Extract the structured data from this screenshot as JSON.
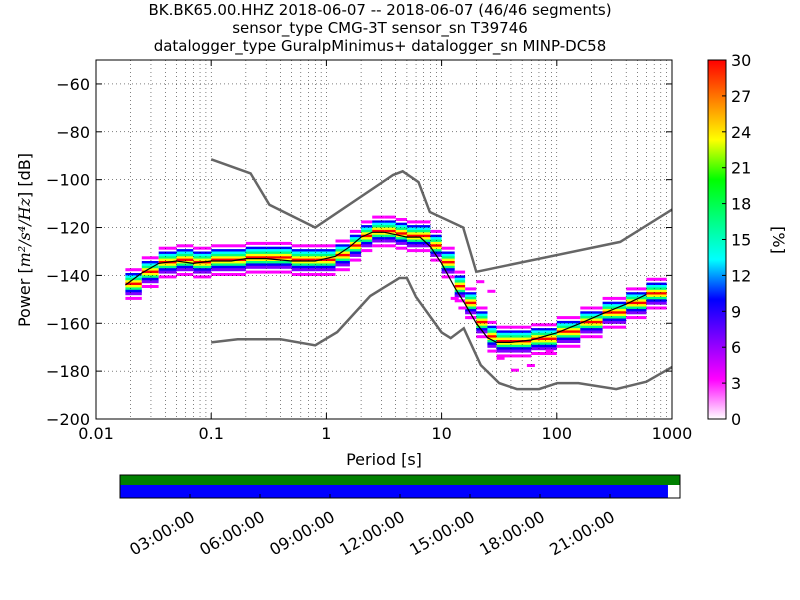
{
  "chart_data": {
    "type": "heatmap",
    "title_lines": [
      "BK.BK65.00.HHZ   2018-06-07 -- 2018-06-07  (46/46 segments)",
      "sensor_type CMG-3T sensor_sn T39746",
      "datalogger_type GuralpMinimus+ datalogger_sn MINP-DC58"
    ],
    "xlabel": "Period [s]",
    "ylabel_main": "Power [",
    "ylabel_math": "m²/s⁴/Hz",
    "ylabel_end": "] [dB]",
    "xscale": "log",
    "xlim": [
      0.01,
      1000
    ],
    "ylim": [
      -200,
      -50
    ],
    "xticks": [
      "0.01",
      "0.1",
      "1",
      "10",
      "100",
      "1000"
    ],
    "yticks": [
      "−60",
      "−80",
      "−100",
      "−120",
      "−140",
      "−160",
      "−180",
      "−200"
    ],
    "ytick_values": [
      -60,
      -80,
      -100,
      -120,
      -140,
      -160,
      -180,
      -200
    ],
    "grid": true,
    "colorbar": {
      "label": "[%]",
      "range": [
        0,
        30
      ],
      "ticks": [
        "0",
        "3",
        "6",
        "9",
        "12",
        "15",
        "18",
        "21",
        "24",
        "27",
        "30"
      ],
      "colors": [
        "#ffffff",
        "#ff00ff",
        "#8000ff",
        "#0000ff",
        "#00ffff",
        "#00ff80",
        "#00ff00",
        "#ffff00",
        "#ff8000",
        "#ff0000"
      ]
    },
    "nhnm": {
      "name": "NHNM",
      "x": [
        0.1,
        0.22,
        0.32,
        0.8,
        3.8,
        4.6,
        6.3,
        7.9,
        15.4,
        20,
        354.8,
        1000
      ],
      "y": [
        -91.5,
        -97.4,
        -110.5,
        -120,
        -98,
        -96.5,
        -101,
        -113.5,
        -120,
        -138.5,
        -126,
        -112.5
      ]
    },
    "nlnm": {
      "name": "NLNM",
      "x": [
        0.1,
        0.17,
        0.4,
        0.8,
        1.24,
        2.4,
        4.3,
        5,
        6,
        10,
        12,
        15.6,
        21.9,
        31.6,
        45,
        70,
        101,
        154,
        328,
        600,
        1000
      ],
      "y": [
        -168,
        -166.7,
        -166.7,
        -169.2,
        -163.7,
        -148.6,
        -141.1,
        -141.1,
        -149,
        -163.8,
        -166.2,
        -162.1,
        -177.5,
        -185,
        -187.5,
        -187.5,
        -185,
        -185,
        -187.5,
        -184.4,
        -178.3
      ]
    },
    "mode": {
      "name": "mode",
      "x": [
        0.018,
        0.025,
        0.035,
        0.05,
        0.07,
        0.1,
        0.15,
        0.2,
        0.3,
        0.5,
        0.8,
        1.2,
        1.6,
        2,
        2.5,
        3.2,
        4,
        5,
        6.5,
        8,
        10,
        13,
        16,
        20,
        25,
        30,
        40,
        60,
        100,
        160,
        250,
        400,
        600
      ],
      "y": [
        -144,
        -139,
        -135,
        -134,
        -135,
        -134,
        -134,
        -133,
        -133,
        -134,
        -134,
        -132,
        -128,
        -124,
        -122,
        -122,
        -123,
        -124,
        -124,
        -128,
        -135,
        -145,
        -152,
        -160,
        -166,
        -168,
        -168,
        -167,
        -164,
        -160,
        -156,
        -152,
        -148
      ]
    },
    "density_stack": {
      "x": [
        0.018,
        0.025,
        0.035,
        0.05,
        0.07,
        0.1,
        0.15,
        0.2,
        0.3,
        0.5,
        0.8,
        1.2,
        1.6,
        2,
        2.5,
        3.2,
        4,
        5,
        6.5,
        8,
        10,
        13,
        16,
        20,
        25,
        30,
        40,
        60,
        100,
        160,
        250,
        400,
        600
      ],
      "offsets": [
        6,
        4,
        3,
        2,
        1,
        0,
        -1,
        -2,
        -3,
        -4,
        -6
      ],
      "levels": [
        3,
        9,
        13,
        18,
        24,
        30,
        22,
        16,
        11,
        6,
        2
      ]
    },
    "outliers": {
      "x": [
        12,
        14,
        17,
        20,
        25,
        30,
        40,
        55,
        80
      ],
      "y": [
        -150,
        -154,
        -158,
        -143,
        -147,
        -175,
        -180,
        -178,
        -172
      ]
    }
  },
  "timeline": {
    "ticks": [
      "03:00:00",
      "06:00:00",
      "09:00:00",
      "12:00:00",
      "15:00:00",
      "18:00:00",
      "21:00:00"
    ],
    "tick_hours": [
      3,
      6,
      9,
      12,
      15,
      18,
      21
    ],
    "span_hours": 24,
    "data_fraction": 1.0,
    "segments_fraction": 0.9785,
    "data_color": "#008000",
    "segments_color": "#0000ff"
  }
}
